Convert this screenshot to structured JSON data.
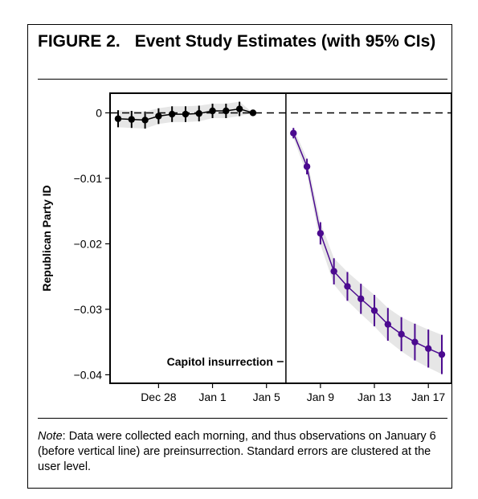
{
  "figure": {
    "number": "FIGURE 2.",
    "title": "Event Study Estimates (with 95% CIs)"
  },
  "note": {
    "label": "Note",
    "text": ": Data were collected each morning, and thus observations on January 6 (before vertical line) are preinsurrection. Standard errors are clustered at the user level."
  },
  "chart_data": {
    "type": "line",
    "ylabel": "Republican Party ID",
    "xlabel": "",
    "ylim": [
      -0.0413,
      0.003
    ],
    "xlim": [
      "Dec 24",
      "Jan 18"
    ],
    "x_ticks": [
      "Dec 28",
      "Jan 1",
      "Jan 5",
      "Jan 9",
      "Jan 13",
      "Jan 17"
    ],
    "y_ticks": [
      0,
      -0.01,
      -0.02,
      -0.03,
      -0.04
    ],
    "y_tick_labels": [
      "0",
      "−0.01",
      "−0.02",
      "−0.03",
      "−0.04"
    ],
    "reference_line_y": 0,
    "event_line_between": [
      "Jan 6",
      "Jan 7"
    ],
    "annotation": "Capitol insurrection",
    "grid": false,
    "series": [
      {
        "color": "#000000",
        "points": [
          {
            "x": "Dec 25",
            "y": -0.0009,
            "lo": -0.0022,
            "hi": 0.0004
          },
          {
            "x": "Dec 26",
            "y": -0.001,
            "lo": -0.0023,
            "hi": 0.0003
          },
          {
            "x": "Dec 27",
            "y": -0.0011,
            "lo": -0.0024,
            "hi": 0.0002
          },
          {
            "x": "Dec 28",
            "y": -0.0005,
            "lo": -0.0017,
            "hi": 0.0007
          },
          {
            "x": "Dec 29",
            "y": -0.0002,
            "lo": -0.0014,
            "hi": 0.001
          },
          {
            "x": "Dec 30",
            "y": -0.0002,
            "lo": -0.0014,
            "hi": 0.001
          },
          {
            "x": "Dec 31",
            "y": -0.0001,
            "lo": -0.0013,
            "hi": 0.0011
          },
          {
            "x": "Jan 1",
            "y": 0.0003,
            "lo": -0.0008,
            "hi": 0.0014
          },
          {
            "x": "Jan 2",
            "y": 0.0003,
            "lo": -0.0008,
            "hi": 0.0014
          },
          {
            "x": "Jan 3",
            "y": 0.0006,
            "lo": -0.0005,
            "hi": 0.0017
          },
          {
            "x": "Jan 4",
            "y": 0.0,
            "lo": 0.0,
            "hi": 0.0
          }
        ]
      },
      {
        "color": "#4b0a8f",
        "points": [
          {
            "x": "Jan 7",
            "y": -0.0031,
            "lo": -0.0039,
            "hi": -0.0023
          },
          {
            "x": "Jan 8",
            "y": -0.0082,
            "lo": -0.0094,
            "hi": -0.007
          },
          {
            "x": "Jan 9",
            "y": -0.0184,
            "lo": -0.0201,
            "hi": -0.0167
          },
          {
            "x": "Jan 10",
            "y": -0.0242,
            "lo": -0.0262,
            "hi": -0.0222
          },
          {
            "x": "Jan 11",
            "y": -0.0265,
            "lo": -0.0287,
            "hi": -0.0243
          },
          {
            "x": "Jan 12",
            "y": -0.0284,
            "lo": -0.0307,
            "hi": -0.0261
          },
          {
            "x": "Jan 13",
            "y": -0.0302,
            "lo": -0.0326,
            "hi": -0.0278
          },
          {
            "x": "Jan 14",
            "y": -0.0323,
            "lo": -0.0348,
            "hi": -0.0298
          },
          {
            "x": "Jan 15",
            "y": -0.0338,
            "lo": -0.0364,
            "hi": -0.0312
          },
          {
            "x": "Jan 16",
            "y": -0.035,
            "lo": -0.0378,
            "hi": -0.0322
          },
          {
            "x": "Jan 17",
            "y": -0.036,
            "lo": -0.0389,
            "hi": -0.0331
          },
          {
            "x": "Jan 18",
            "y": -0.0369,
            "lo": -0.0399,
            "hi": -0.0339
          }
        ]
      }
    ]
  }
}
